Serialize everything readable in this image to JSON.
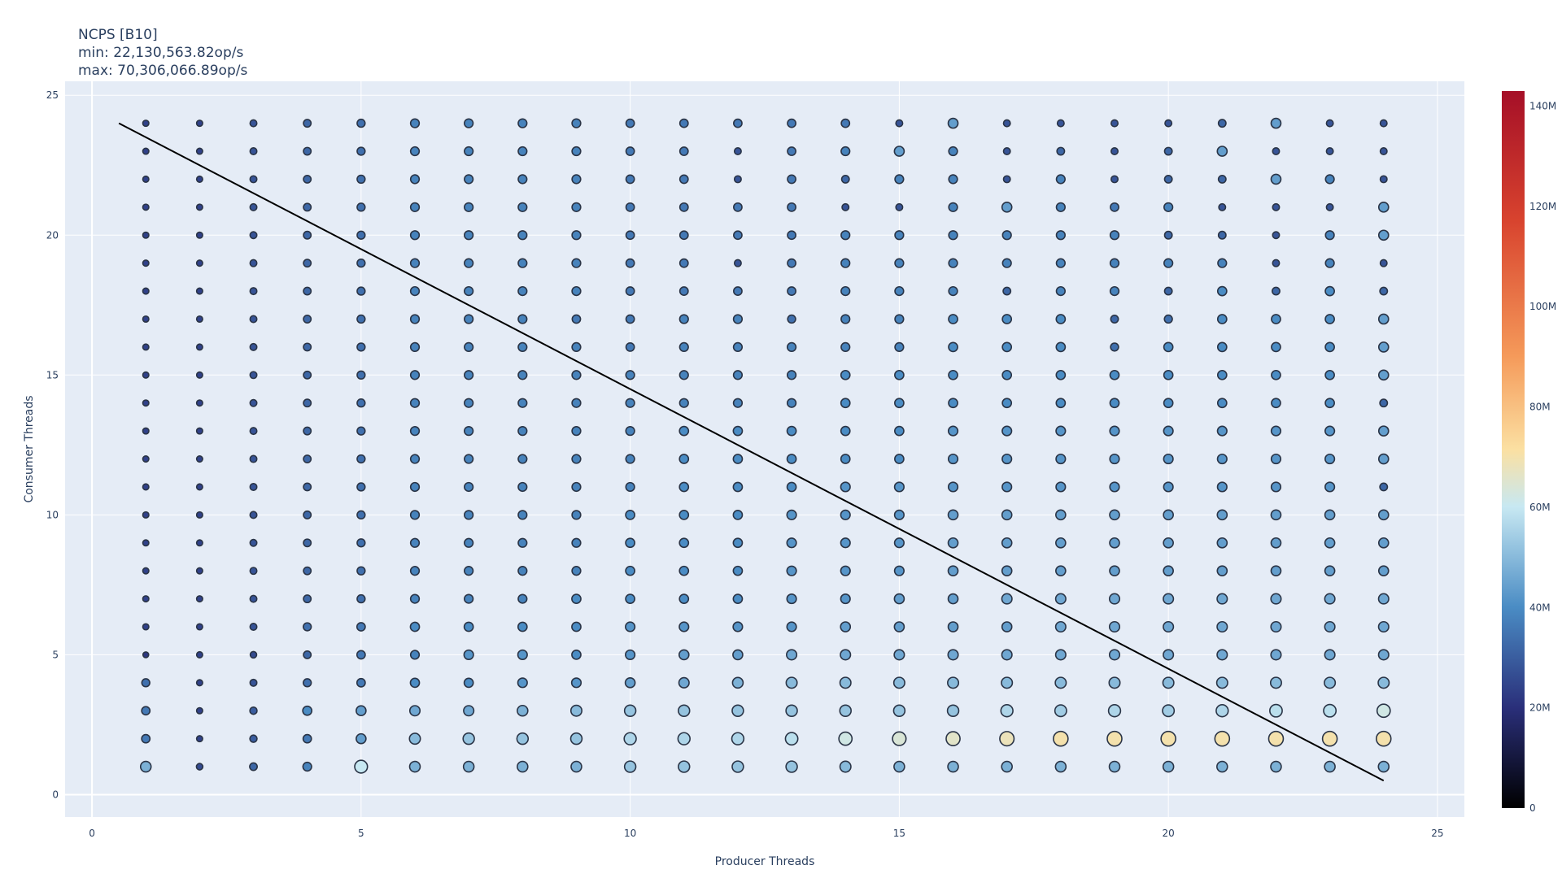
{
  "chart_data": {
    "type": "scatter",
    "title": "NCPS [B10]",
    "subtitle_min": "min: 22,130,563.82op/s",
    "subtitle_max": "max: 70,306,066.89op/s",
    "xlabel": "Producer Threads",
    "ylabel": "Consumer Threads",
    "xlim": [
      -0.5,
      25.5
    ],
    "ylim": [
      -0.8,
      25.5
    ],
    "xticks": [
      0,
      5,
      10,
      15,
      20,
      25
    ],
    "yticks": [
      0,
      5,
      10,
      15,
      20,
      25
    ],
    "grid": true,
    "colorbar": {
      "range": [
        0,
        143000000
      ],
      "ticks": [
        {
          "value": 0,
          "label": "0"
        },
        {
          "value": 20000000,
          "label": "20M"
        },
        {
          "value": 40000000,
          "label": "40M"
        },
        {
          "value": 60000000,
          "label": "60M"
        },
        {
          "value": 80000000,
          "label": "80M"
        },
        {
          "value": 100000000,
          "label": "100M"
        },
        {
          "value": 120000000,
          "label": "120M"
        },
        {
          "value": 140000000,
          "label": "140M"
        }
      ],
      "colors": [
        "#000000",
        "#2a2f7a",
        "#4a8cc4",
        "#c7e8f2",
        "#fbe0a2",
        "#f59a5a",
        "#d8432e",
        "#a50f27"
      ],
      "positions": [
        0,
        0.14,
        0.28,
        0.42,
        0.5,
        0.63,
        0.82,
        1.0
      ]
    },
    "reference_line": {
      "x": [
        0.5,
        24
      ],
      "y": [
        24,
        0.5
      ]
    },
    "grid_x": [
      1,
      24
    ],
    "grid_y": [
      1,
      24
    ],
    "values_millions": [
      [
        48,
        26,
        32,
        38,
        60,
        48,
        48,
        48,
        48,
        52,
        52,
        52,
        52,
        50,
        48,
        48,
        48,
        48,
        48,
        48,
        48,
        48,
        48,
        48
      ],
      [
        36,
        24,
        30,
        36,
        44,
        50,
        52,
        52,
        52,
        56,
        56,
        56,
        58,
        62,
        64,
        66,
        68,
        70,
        70,
        70,
        70,
        70,
        70,
        70
      ],
      [
        36,
        24,
        30,
        40,
        44,
        46,
        46,
        48,
        50,
        52,
        52,
        52,
        52,
        52,
        52,
        52,
        56,
        54,
        56,
        54,
        56,
        58,
        58,
        62
      ],
      [
        34,
        24,
        28,
        34,
        36,
        40,
        40,
        42,
        42,
        44,
        46,
        48,
        50,
        50,
        50,
        50,
        50,
        50,
        50,
        50,
        50,
        50,
        50,
        50
      ],
      [
        22,
        24,
        26,
        32,
        36,
        38,
        42,
        42,
        40,
        42,
        44,
        44,
        46,
        46,
        46,
        46,
        46,
        46,
        46,
        46,
        46,
        46,
        46,
        46
      ],
      [
        24,
        24,
        28,
        34,
        36,
        40,
        40,
        40,
        40,
        42,
        42,
        42,
        42,
        44,
        44,
        44,
        44,
        46,
        46,
        46,
        46,
        46,
        46,
        46
      ],
      [
        24,
        24,
        28,
        32,
        34,
        38,
        38,
        38,
        40,
        40,
        40,
        40,
        42,
        42,
        44,
        44,
        46,
        46,
        46,
        46,
        46,
        46,
        46,
        46
      ],
      [
        24,
        24,
        28,
        32,
        34,
        38,
        38,
        38,
        38,
        40,
        40,
        40,
        42,
        42,
        42,
        44,
        44,
        44,
        44,
        44,
        44,
        44,
        44,
        44
      ],
      [
        24,
        24,
        28,
        32,
        34,
        38,
        38,
        38,
        38,
        40,
        40,
        40,
        42,
        42,
        42,
        44,
        44,
        44,
        44,
        44,
        44,
        44,
        44,
        44
      ],
      [
        24,
        24,
        28,
        32,
        34,
        38,
        38,
        38,
        38,
        40,
        40,
        40,
        42,
        42,
        42,
        44,
        44,
        44,
        44,
        44,
        44,
        44,
        44,
        44
      ],
      [
        24,
        24,
        28,
        32,
        34,
        38,
        38,
        38,
        38,
        38,
        40,
        40,
        40,
        42,
        42,
        42,
        42,
        42,
        42,
        42,
        42,
        42,
        42,
        32
      ],
      [
        24,
        24,
        28,
        32,
        34,
        38,
        38,
        38,
        38,
        38,
        40,
        40,
        40,
        40,
        40,
        42,
        42,
        42,
        42,
        42,
        42,
        42,
        42,
        44
      ],
      [
        24,
        24,
        28,
        32,
        34,
        38,
        38,
        38,
        38,
        38,
        40,
        40,
        40,
        40,
        40,
        42,
        42,
        42,
        42,
        42,
        42,
        42,
        42,
        44
      ],
      [
        24,
        24,
        28,
        32,
        34,
        38,
        38,
        38,
        38,
        38,
        38,
        38,
        38,
        40,
        40,
        40,
        40,
        40,
        40,
        40,
        40,
        40,
        40,
        32
      ],
      [
        24,
        24,
        28,
        32,
        34,
        38,
        38,
        38,
        38,
        38,
        38,
        38,
        38,
        40,
        40,
        40,
        40,
        40,
        40,
        40,
        40,
        40,
        40,
        44
      ],
      [
        24,
        24,
        28,
        32,
        34,
        38,
        38,
        38,
        38,
        36,
        38,
        38,
        38,
        38,
        38,
        40,
        40,
        40,
        34,
        40,
        40,
        40,
        40,
        44
      ],
      [
        24,
        24,
        28,
        32,
        34,
        38,
        38,
        38,
        36,
        36,
        38,
        38,
        34,
        38,
        38,
        40,
        40,
        40,
        32,
        34,
        40,
        40,
        40,
        44
      ],
      [
        24,
        24,
        28,
        32,
        34,
        38,
        38,
        38,
        38,
        36,
        36,
        36,
        36,
        38,
        38,
        38,
        32,
        38,
        38,
        32,
        40,
        32,
        40,
        32
      ],
      [
        24,
        24,
        28,
        32,
        34,
        38,
        38,
        38,
        38,
        36,
        36,
        28,
        36,
        38,
        38,
        38,
        38,
        38,
        38,
        38,
        38,
        28,
        38,
        28
      ],
      [
        24,
        24,
        28,
        32,
        34,
        38,
        38,
        38,
        38,
        36,
        36,
        36,
        36,
        38,
        38,
        38,
        38,
        38,
        38,
        32,
        32,
        28,
        38,
        44
      ],
      [
        24,
        24,
        28,
        32,
        34,
        38,
        38,
        38,
        38,
        36,
        36,
        36,
        36,
        28,
        28,
        38,
        44,
        38,
        36,
        38,
        28,
        28,
        28,
        44
      ],
      [
        24,
        24,
        28,
        32,
        34,
        38,
        38,
        38,
        38,
        36,
        36,
        28,
        36,
        32,
        38,
        38,
        28,
        38,
        28,
        32,
        32,
        44,
        38,
        28
      ],
      [
        24,
        24,
        28,
        32,
        34,
        38,
        38,
        38,
        38,
        36,
        36,
        28,
        36,
        38,
        44,
        38,
        28,
        32,
        28,
        32,
        44,
        28,
        28,
        28
      ],
      [
        24,
        24,
        28,
        32,
        34,
        38,
        38,
        38,
        38,
        36,
        36,
        36,
        36,
        36,
        28,
        44,
        28,
        28,
        28,
        28,
        32,
        44,
        28,
        28
      ]
    ]
  }
}
